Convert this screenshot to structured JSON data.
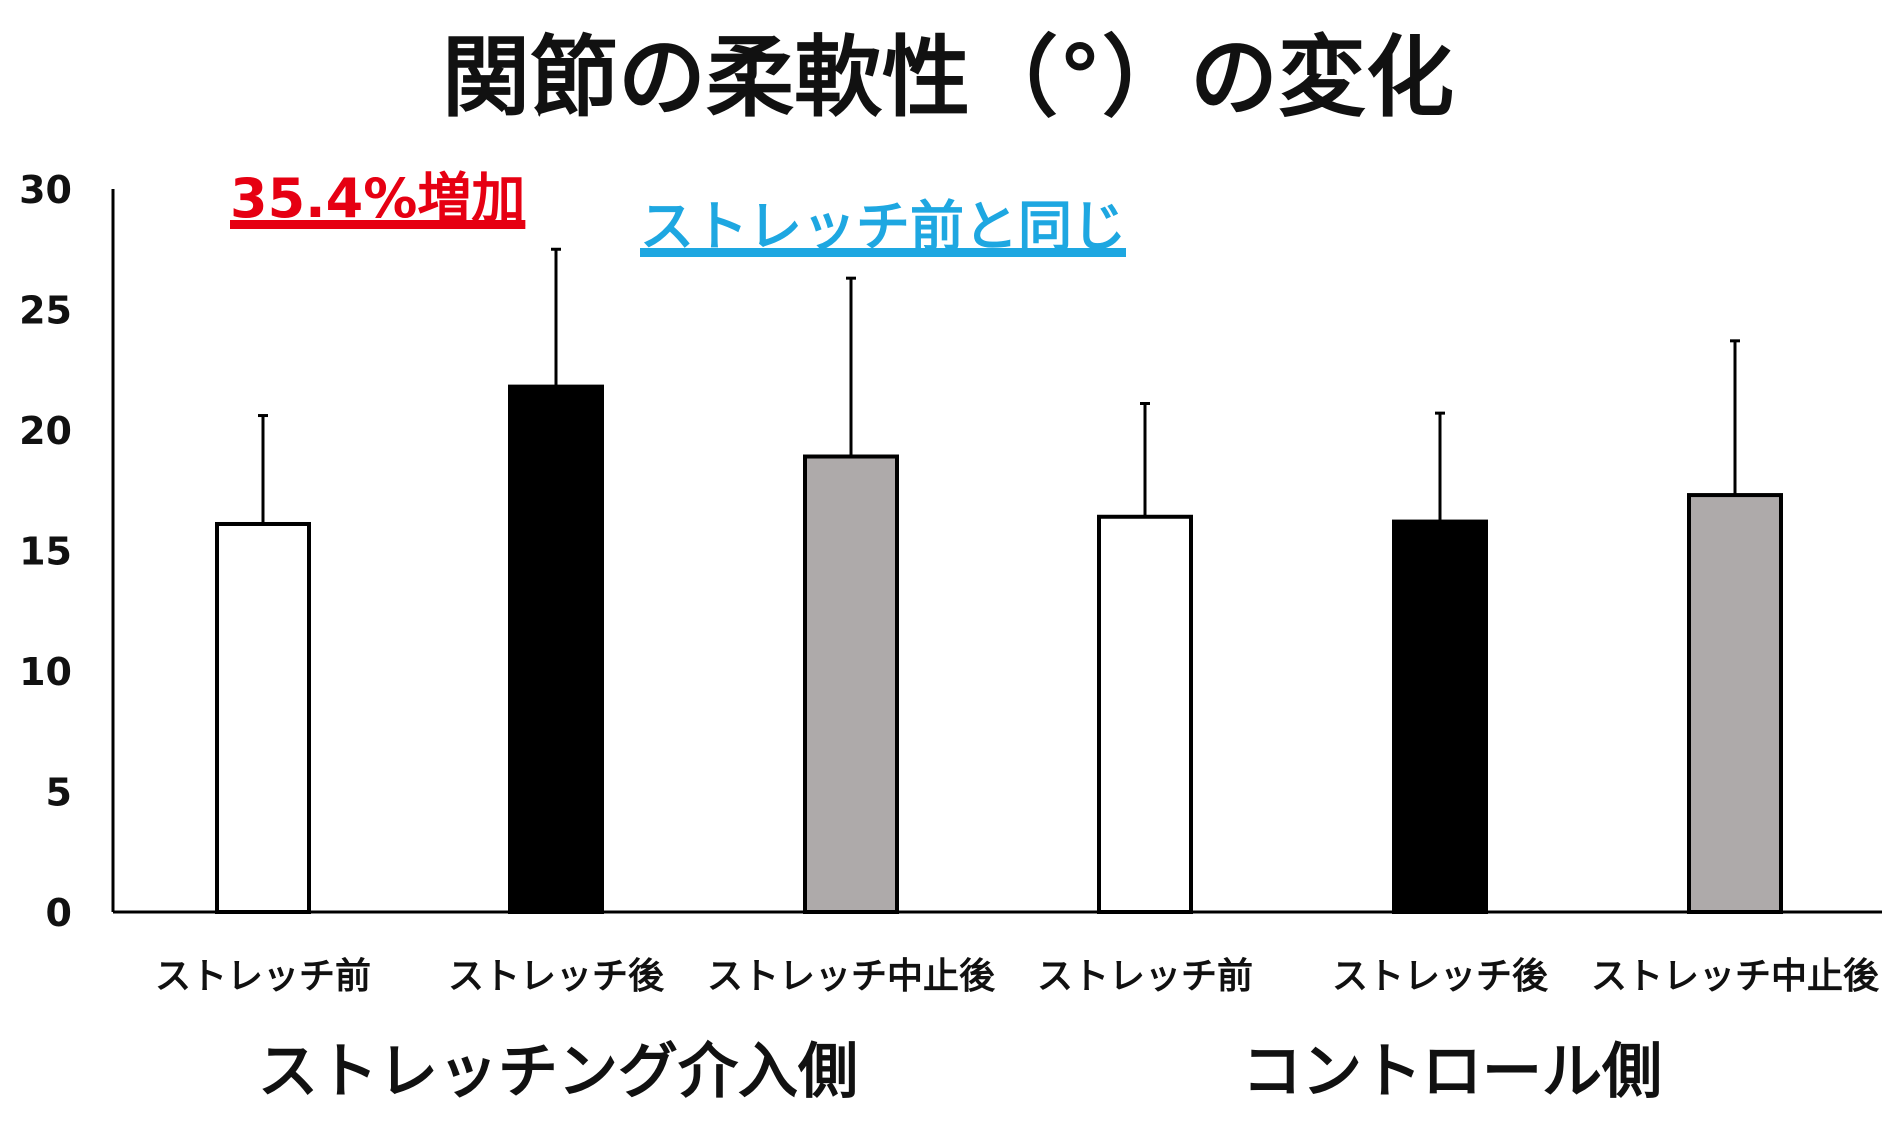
{
  "chart_data": {
    "type": "bar",
    "title": "関節の柔軟性（°）の変化",
    "xlabel": "",
    "ylabel": "",
    "ylim": [
      0,
      30
    ],
    "yticks": [
      0,
      5,
      10,
      15,
      20,
      25,
      30
    ],
    "grid": false,
    "groups": [
      {
        "label": "ストレッチング介入側",
        "categories": [
          "ストレッチ前",
          "ストレッチ後",
          "ストレッチ中止後"
        ]
      },
      {
        "label": "コントロール側",
        "categories": [
          "ストレッチ前",
          "ストレッチ後",
          "ストレッチ中止後"
        ]
      }
    ],
    "bars": [
      {
        "category": "ストレッチ前",
        "group": "ストレッチング介入側",
        "value": 16.1,
        "error": 4.5,
        "fill": "#ffffff"
      },
      {
        "category": "ストレッチ後",
        "group": "ストレッチング介入側",
        "value": 21.8,
        "error": 5.7,
        "fill": "#000000"
      },
      {
        "category": "ストレッチ中止後",
        "group": "ストレッチング介入側",
        "value": 18.9,
        "error": 7.4,
        "fill": "#aeaaaa"
      },
      {
        "category": "ストレッチ前",
        "group": "コントロール側",
        "value": 16.4,
        "error": 4.7,
        "fill": "#ffffff"
      },
      {
        "category": "ストレッチ後",
        "group": "コントロール側",
        "value": 16.2,
        "error": 4.5,
        "fill": "#000000"
      },
      {
        "category": "ストレッチ中止後",
        "group": "コントロール側",
        "value": 17.3,
        "error": 6.4,
        "fill": "#aeaaaa"
      }
    ],
    "annotations": [
      {
        "text": "35.4%増加",
        "color": "#e60012"
      },
      {
        "text": "ストレッチ前と同じ",
        "color": "#1ea7e1"
      }
    ]
  }
}
